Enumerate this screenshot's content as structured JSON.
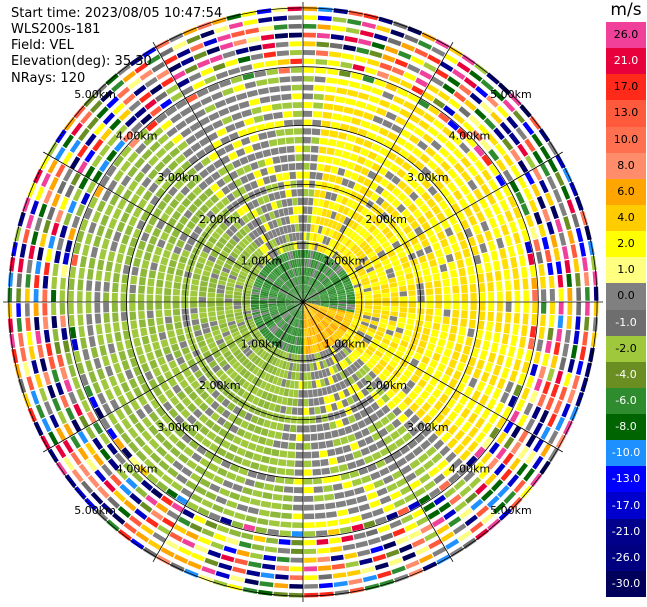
{
  "header": {
    "start_time": "Start time: 2023/08/05 10:47:54",
    "instrument": "WLS200s-181",
    "field": "Field: VEL",
    "elevation": "Elevation(deg): 35.30",
    "nrays": "NRays: 120"
  },
  "colorbar": {
    "unit": "m/s",
    "levels": [
      {
        "label": "26.0",
        "color": "#f0409a"
      },
      {
        "label": "21.0",
        "color": "#e8003c"
      },
      {
        "label": "17.0",
        "color": "#ff2a1a"
      },
      {
        "label": "13.0",
        "color": "#ff5a3c"
      },
      {
        "label": "10.0",
        "color": "#ff7050"
      },
      {
        "label": "8.0",
        "color": "#ff8c6a"
      },
      {
        "label": "6.0",
        "color": "#ffa500"
      },
      {
        "label": "4.0",
        "color": "#ffcc00"
      },
      {
        "label": "2.0",
        "color": "#ffff00"
      },
      {
        "label": "1.0",
        "color": "#ffff80"
      },
      {
        "label": "0.0",
        "color": "#808080"
      },
      {
        "label": "-1.0",
        "color": "#6e6e6e"
      },
      {
        "label": "-2.0",
        "color": "#a0c83c"
      },
      {
        "label": "-4.0",
        "color": "#6b8e23"
      },
      {
        "label": "-6.0",
        "color": "#2e8b2e"
      },
      {
        "label": "-8.0",
        "color": "#006400"
      },
      {
        "label": "-10.0",
        "color": "#1e90ff"
      },
      {
        "label": "-13.0",
        "color": "#0000ff"
      },
      {
        "label": "-17.0",
        "color": "#0000cd"
      },
      {
        "label": "-21.0",
        "color": "#00008b"
      },
      {
        "label": "-26.0",
        "color": "#000080"
      },
      {
        "label": "-30.0",
        "color": "#00005a"
      }
    ]
  },
  "chart_data": {
    "type": "heatmap",
    "projection": "polar (PPI scan)",
    "field": "VEL",
    "units": "m/s",
    "elevation_deg": 35.3,
    "nrays": 120,
    "range_rings_km": [
      1.0,
      2.0,
      3.0,
      4.0,
      5.0
    ],
    "range_ring_labels": [
      "1.00km",
      "2.00km",
      "3.00km",
      "4.00km",
      "5.00km"
    ],
    "radial_lines_deg": [
      0,
      30,
      60,
      90,
      120,
      150,
      180,
      210,
      240,
      270,
      300,
      330
    ],
    "max_range_km": 5.1,
    "pattern": {
      "near_range_km": [
        0,
        0.9
      ],
      "near_range_velocity": -6.0,
      "upwind_sector_azimuth_deg": 70,
      "upwind_velocity": 2.0,
      "downwind_sector_azimuth_deg": 250,
      "downwind_velocity": -2.0,
      "noise_beyond_km": 4.0
    }
  }
}
